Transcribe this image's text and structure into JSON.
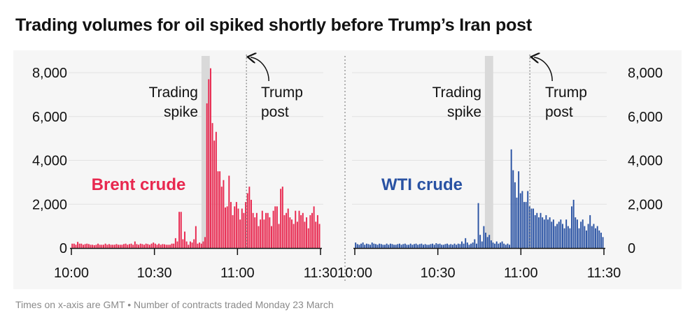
{
  "title": "Trading volumes for oil spiked shortly before Trump’s Iran post",
  "footnote": "Times on x-axis are GMT • Number of contracts traded Monday 23 March",
  "chart_data": [
    {
      "type": "bar",
      "series_name": "Brent crude",
      "color": "#e8284f",
      "x_ticks": [
        "10:00",
        "10:30",
        "11:00",
        "11:30"
      ],
      "y_ticks": [
        "8,000",
        "6,000",
        "4,000",
        "2,000",
        "0"
      ],
      "y_tick_values": [
        8000,
        6000,
        4000,
        2000,
        0
      ],
      "ylim": [
        0,
        8000
      ],
      "x_range_minutes": [
        0,
        90
      ],
      "annotations": {
        "spike_label_line1": "Trading",
        "spike_label_line2": "spike",
        "post_label_line1": "Trump",
        "post_label_line2": "post",
        "spike_window_minutes": [
          47,
          50
        ],
        "post_time_minutes": 64
      },
      "values": [
        200,
        200,
        150,
        280,
        200,
        200,
        150,
        180,
        200,
        180,
        150,
        150,
        130,
        150,
        200,
        150,
        150,
        150,
        200,
        150,
        180,
        150,
        150,
        150,
        180,
        150,
        150,
        150,
        180,
        200,
        150,
        180,
        200,
        150,
        300,
        180,
        150,
        200,
        180,
        150,
        200,
        180,
        150,
        200,
        250,
        200,
        150,
        200,
        150,
        180,
        170,
        150,
        150,
        150,
        200,
        200,
        450,
        300,
        1650,
        1650,
        400,
        750,
        300,
        150,
        300,
        250,
        400,
        1000,
        200,
        250,
        200,
        300,
        500,
        6600,
        7700,
        8200,
        5700,
        4900,
        5300,
        3500,
        3500,
        2800,
        3100,
        1850,
        1900,
        3300,
        2100,
        1500,
        1900,
        2100,
        1800,
        1300,
        1800,
        1600,
        2100,
        2500,
        2800,
        2200,
        1600,
        1400,
        1600,
        1000,
        1300,
        1700,
        1300,
        1600,
        1600,
        1400,
        1000,
        1700,
        1900,
        1900,
        1100,
        2700,
        2800,
        1500,
        1600,
        1800,
        1400,
        1300,
        1100,
        1700,
        1200,
        1700,
        1500,
        1600,
        1200,
        1400,
        900,
        1500,
        1600,
        1900,
        1200,
        1500,
        1100
      ]
    },
    {
      "type": "bar",
      "series_name": "WTI crude",
      "color": "#2952a3",
      "x_ticks": [
        "10:00",
        "10:30",
        "11:00",
        "11:30"
      ],
      "y_ticks": [
        "8,000",
        "6,000",
        "4,000",
        "2,000",
        "0"
      ],
      "y_tick_values": [
        8000,
        6000,
        4000,
        2000,
        0
      ],
      "ylim": [
        0,
        8000
      ],
      "x_range_minutes": [
        0,
        90
      ],
      "annotations": {
        "spike_label_line1": "Trading",
        "spike_label_line2": "spike",
        "post_label_line1": "Trump",
        "post_label_line2": "post",
        "spike_window_minutes": [
          47,
          50
        ],
        "post_time_minutes": 64
      },
      "values": [
        250,
        180,
        150,
        200,
        250,
        150,
        200,
        180,
        150,
        250,
        200,
        180,
        150,
        200,
        180,
        150,
        150,
        200,
        150,
        200,
        180,
        150,
        150,
        180,
        200,
        150,
        180,
        200,
        150,
        150,
        200,
        150,
        180,
        200,
        150,
        180,
        200,
        150,
        180,
        150,
        150,
        180,
        200,
        150,
        220,
        180,
        200,
        150,
        150,
        180,
        200,
        150,
        180,
        150,
        200,
        150,
        200,
        180,
        300,
        200,
        450,
        250,
        150,
        200,
        250,
        400,
        200,
        2050,
        600,
        300,
        1000,
        700,
        500,
        600,
        350,
        250,
        200,
        300,
        200,
        250,
        300,
        200,
        150,
        200,
        150,
        4500,
        3550,
        3000,
        2300,
        3500,
        2500,
        2600,
        2100,
        2100,
        2600,
        1900,
        1800,
        1800,
        1500,
        1600,
        1400,
        1600,
        1400,
        1300,
        1500,
        1300,
        1400,
        1200,
        1300,
        1000,
        1100,
        1200,
        1300,
        1100,
        900,
        1300,
        1000,
        900,
        1900,
        2200,
        1400,
        1300,
        900,
        1200,
        1300,
        1000,
        800,
        1100,
        1500,
        1000,
        1100,
        900,
        1000,
        800,
        700,
        500
      ]
    }
  ]
}
